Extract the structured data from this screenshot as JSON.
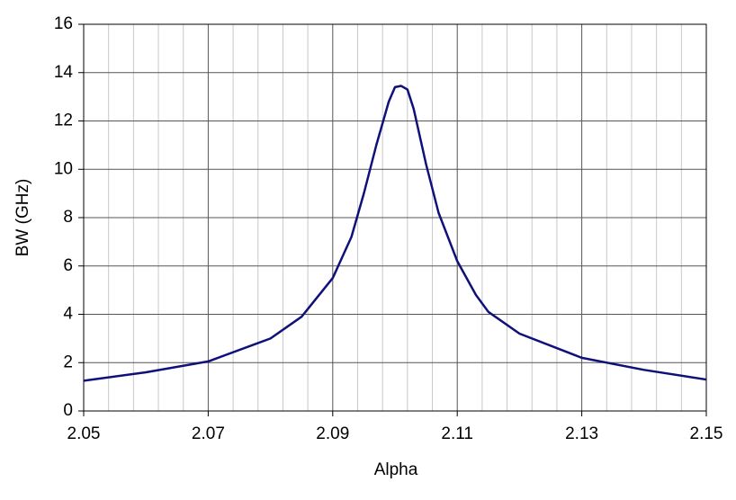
{
  "chart_data": {
    "type": "line",
    "x_label": "Alpha",
    "y_label": "BW (GHz)",
    "series": [
      {
        "name": "BW",
        "color": "#10107a",
        "x": [
          2.05,
          2.06,
          2.07,
          2.08,
          2.085,
          2.09,
          2.093,
          2.095,
          2.097,
          2.099,
          2.1,
          2.101,
          2.102,
          2.103,
          2.105,
          2.107,
          2.11,
          2.113,
          2.115,
          2.12,
          2.13,
          2.14,
          2.15
        ],
        "values": [
          1.25,
          1.6,
          2.05,
          3.0,
          3.9,
          5.5,
          7.2,
          9.0,
          11.0,
          12.8,
          13.4,
          13.45,
          13.3,
          12.5,
          10.2,
          8.2,
          6.2,
          4.8,
          4.1,
          3.2,
          2.2,
          1.7,
          1.3
        ]
      }
    ],
    "xlim": [
      2.05,
      2.15
    ],
    "xticks": [
      2.05,
      2.07,
      2.09,
      2.11,
      2.13,
      2.15
    ],
    "x_minor_ticks": [
      2.054,
      2.058,
      2.062,
      2.066,
      2.074,
      2.078,
      2.082,
      2.086,
      2.094,
      2.098,
      2.102,
      2.106,
      2.114,
      2.118,
      2.122,
      2.126,
      2.134,
      2.138,
      2.142,
      2.146
    ],
    "ylim": [
      0,
      16
    ],
    "yticks": [
      0,
      2,
      4,
      6,
      8,
      10,
      12,
      14,
      16
    ],
    "grid": true
  }
}
